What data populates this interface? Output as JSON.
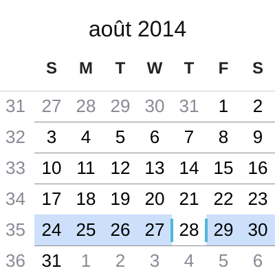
{
  "calendar": {
    "title": "août 2014",
    "weekday_headers": [
      "S",
      "M",
      "T",
      "W",
      "T",
      "F",
      "S"
    ],
    "weeks": [
      {
        "number": "31",
        "days": [
          {
            "label": "27",
            "current_month": false
          },
          {
            "label": "28",
            "current_month": false
          },
          {
            "label": "29",
            "current_month": false
          },
          {
            "label": "30",
            "current_month": false
          },
          {
            "label": "31",
            "current_month": false
          },
          {
            "label": "1",
            "current_month": true
          },
          {
            "label": "2",
            "current_month": true
          }
        ]
      },
      {
        "number": "32",
        "days": [
          {
            "label": "3",
            "current_month": true
          },
          {
            "label": "4",
            "current_month": true
          },
          {
            "label": "5",
            "current_month": true
          },
          {
            "label": "6",
            "current_month": true
          },
          {
            "label": "7",
            "current_month": true
          },
          {
            "label": "8",
            "current_month": true
          },
          {
            "label": "9",
            "current_month": true
          }
        ]
      },
      {
        "number": "33",
        "days": [
          {
            "label": "10",
            "current_month": true
          },
          {
            "label": "11",
            "current_month": true
          },
          {
            "label": "12",
            "current_month": true
          },
          {
            "label": "13",
            "current_month": true
          },
          {
            "label": "14",
            "current_month": true
          },
          {
            "label": "15",
            "current_month": true
          },
          {
            "label": "16",
            "current_month": true
          }
        ]
      },
      {
        "number": "34",
        "days": [
          {
            "label": "17",
            "current_month": true
          },
          {
            "label": "18",
            "current_month": true
          },
          {
            "label": "19",
            "current_month": true
          },
          {
            "label": "20",
            "current_month": true
          },
          {
            "label": "21",
            "current_month": true
          },
          {
            "label": "22",
            "current_month": true
          },
          {
            "label": "23",
            "current_month": true
          }
        ]
      },
      {
        "number": "35",
        "selected": true,
        "days": [
          {
            "label": "24",
            "current_month": true
          },
          {
            "label": "25",
            "current_month": true
          },
          {
            "label": "26",
            "current_month": true
          },
          {
            "label": "27",
            "current_month": true
          },
          {
            "label": "28",
            "current_month": true,
            "today": true
          },
          {
            "label": "29",
            "current_month": true
          },
          {
            "label": "30",
            "current_month": true
          }
        ]
      },
      {
        "number": "36",
        "days": [
          {
            "label": "31",
            "current_month": true
          },
          {
            "label": "1",
            "current_month": false
          },
          {
            "label": "2",
            "current_month": false
          },
          {
            "label": "3",
            "current_month": false
          },
          {
            "label": "4",
            "current_month": false
          },
          {
            "label": "5",
            "current_month": false
          },
          {
            "label": "6",
            "current_month": false
          }
        ]
      }
    ]
  },
  "colors": {
    "selected_week_bg": "#cde0fb",
    "today_marker": "#4fb7d9",
    "other_month_text": "#8a8a96"
  }
}
